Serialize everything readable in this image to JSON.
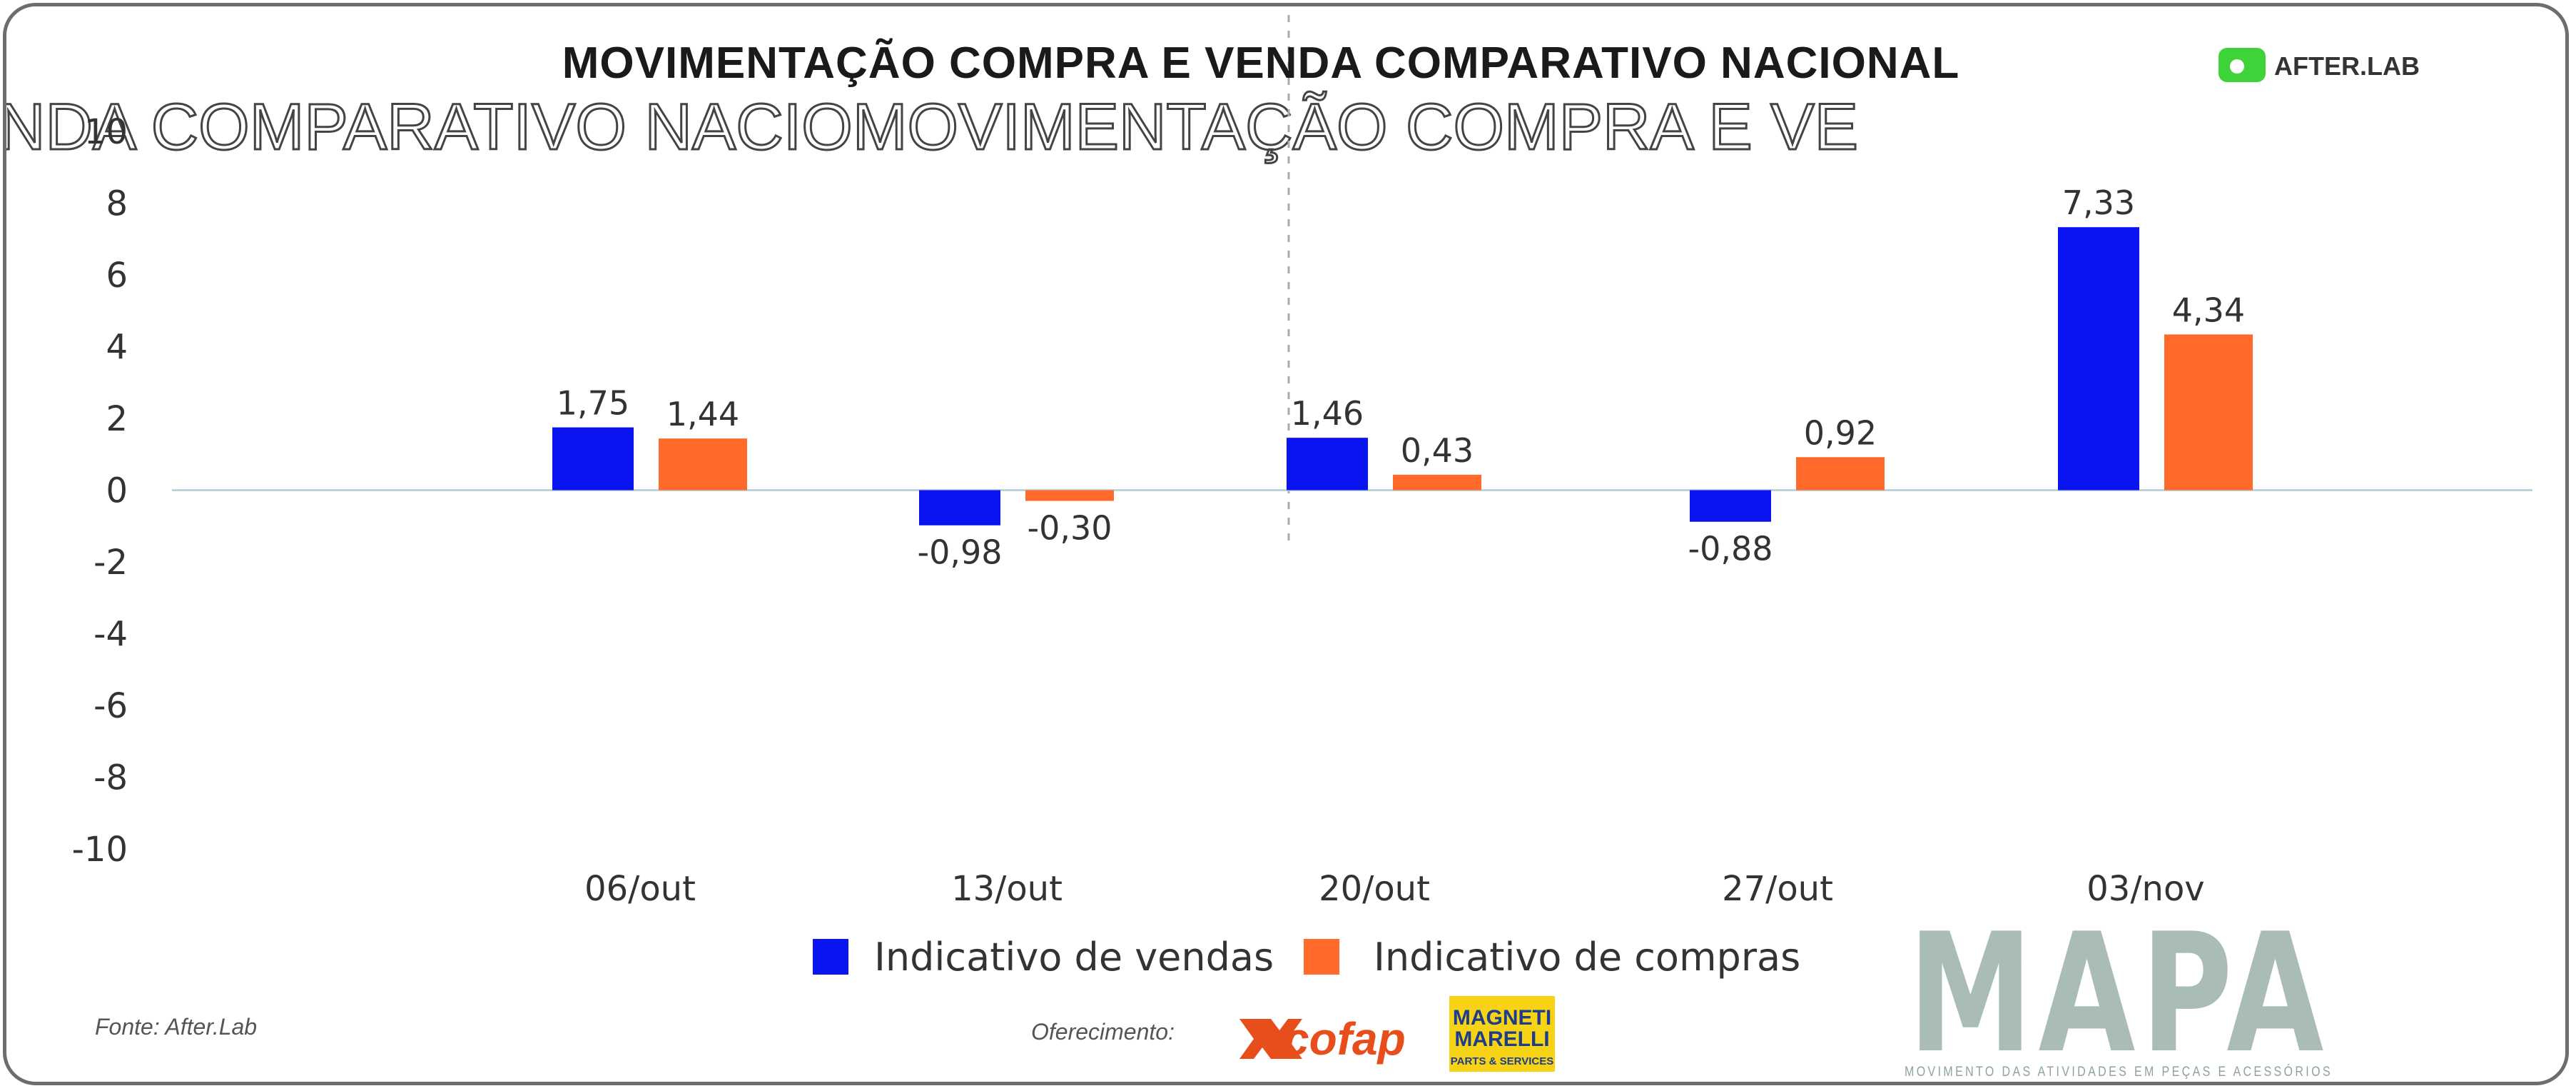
{
  "chart_data": {
    "type": "bar",
    "title": "MOVIMENTAÇÃO COMPRA E VENDA COMPARATIVO NACIONAL",
    "ghost_title": "NDA COMPARATIVO NACIOMOVIMENTAÇÃO COMPRA E VE",
    "categories": [
      "06/out",
      "13/out",
      "20/out",
      "27/out",
      "03/nov"
    ],
    "series": [
      {
        "name": "Indicativo de vendas",
        "color": "#0a14f0",
        "values": [
          1.75,
          -0.98,
          1.46,
          -0.88,
          7.33
        ],
        "labels": [
          "1,75",
          "-0,98",
          "1,46",
          "-0,88",
          "7,33"
        ]
      },
      {
        "name": "Indicativo de compras",
        "color": "#ff6a2a",
        "values": [
          1.44,
          -0.3,
          0.43,
          0.92,
          4.34
        ],
        "labels": [
          "1,44",
          "-0,30",
          "0,43",
          "0,92",
          "4,34"
        ]
      }
    ],
    "ylim": [
      -10,
      10
    ],
    "yticks": [
      10,
      8,
      6,
      4,
      2,
      0,
      -2,
      -4,
      -6,
      -8,
      -10
    ],
    "xlabel": "",
    "ylabel": "",
    "legend_position": "bottom"
  },
  "source": "Fonte: After.Lab",
  "sponsor_label": "Oferecimento:",
  "logos": {
    "afterlab": "AFTER.LAB",
    "mapa": "MAPA",
    "mapa_tagline": "MOVIMENTO DAS ATIVIDADES EM PEÇAS E ACESSÓRIOS",
    "cofap": "cofap",
    "magneti_line1": "MAGNETI",
    "magneti_line2": "MARELLI",
    "magneti_line3": "PARTS & SERVICES"
  },
  "colors": {
    "afterlab_green": "#3fd33a",
    "mapa_gray": "#a9bdb5",
    "magneti_yellow": "#f6d415"
  }
}
